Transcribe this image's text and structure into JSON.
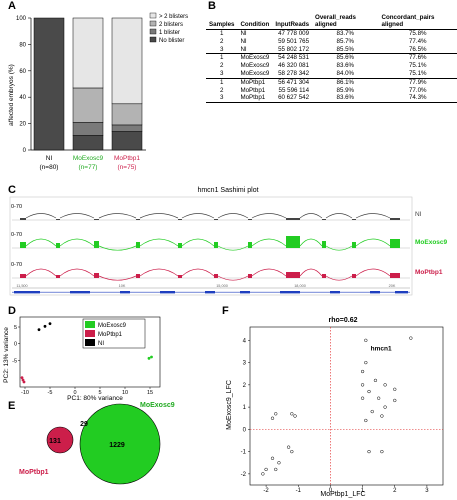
{
  "panels": {
    "a": "A",
    "b": "B",
    "c": "C",
    "d": "D",
    "e": "E",
    "f": "F"
  },
  "panel_a": {
    "ylabel": "affected embryos (%)",
    "yticks": [
      "100",
      "80",
      "60",
      "40",
      "20",
      "0"
    ],
    "legend": [
      "> 2 blisters",
      "2 blisters",
      "1 blister",
      "No blister"
    ],
    "legend_colors": [
      "#e6e6e6",
      "#b3b3b3",
      "#7a7a7a",
      "#4a4a4a"
    ],
    "bars": [
      {
        "name": "NI",
        "n": "(n=80)",
        "color": "#000000",
        "segments": [
          0,
          0,
          0,
          100
        ]
      },
      {
        "name": "MoExosc9",
        "n": "(n=77)",
        "color": "#22aa22",
        "segments": [
          53,
          26,
          10,
          11
        ]
      },
      {
        "name": "MoPtbp1",
        "n": "(n=75)",
        "color": "#cc1e4a",
        "segments": [
          65,
          16,
          5,
          14
        ]
      }
    ]
  },
  "panel_b": {
    "headers": [
      "Samples",
      "Condition",
      "InputReads",
      "Overall_reads aligned",
      "Concordant_pairs aligned"
    ],
    "rows": [
      [
        "1",
        "NI",
        "47 778 009",
        "83.7%",
        "75.8%"
      ],
      [
        "2",
        "NI",
        "59 501 765",
        "85.7%",
        "77.4%"
      ],
      [
        "3",
        "NI",
        "55 802 172",
        "85.5%",
        "76.5%"
      ],
      [
        "1",
        "MoExosc9",
        "54 248 531",
        "85.6%",
        "77.6%"
      ],
      [
        "2",
        "MoExosc9",
        "46 320 081",
        "83.6%",
        "75.1%"
      ],
      [
        "3",
        "MoExosc9",
        "58 278 342",
        "84.0%",
        "75.1%"
      ],
      [
        "1",
        "MoPtbp1",
        "56 471 304",
        "86.1%",
        "77.9%"
      ],
      [
        "2",
        "MoPtbp1",
        "55 596 114",
        "85.9%",
        "77.0%"
      ],
      [
        "3",
        "MoPtbp1",
        "60 627 542",
        "83.6%",
        "74.3%"
      ]
    ]
  },
  "panel_c": {
    "title": "hmcn1 Sashimi plot",
    "tracks": [
      {
        "range": "0-70",
        "label": "NI",
        "color": "#444444"
      },
      {
        "range": "0-70",
        "label": "MoExosc9",
        "color": "#22cc22"
      },
      {
        "range": "0-70",
        "label": "MoPtbp1",
        "color": "#cc1e4a"
      }
    ],
    "axis_ticks": [
      "11,500",
      "10K",
      "15,000",
      "18,000",
      "20K"
    ]
  },
  "panel_d": {
    "xlabel": "PC1: 80% variance",
    "ylabel": "PC2: 13% variance",
    "xticks": [
      "-10",
      "-5",
      "0",
      "5",
      "10",
      "15"
    ],
    "yticks": [
      "-5",
      "0",
      "5"
    ],
    "legend": [
      {
        "label": "MoExosc9",
        "color": "#22cc22"
      },
      {
        "label": "MoPtbp1",
        "color": "#cc1e4a"
      },
      {
        "label": "NI",
        "color": "#000000"
      }
    ],
    "points": [
      {
        "group": "NI",
        "x": -7.2,
        "y": 4.2
      },
      {
        "group": "NI",
        "x": -6.0,
        "y": 5.2
      },
      {
        "group": "NI",
        "x": -5.0,
        "y": 6.0
      },
      {
        "group": "MoExosc9",
        "x": 14.8,
        "y": -4.4
      },
      {
        "group": "MoExosc9",
        "x": 15.3,
        "y": -4.0
      },
      {
        "group": "MoPtbp1",
        "x": -10.6,
        "y": -10.2
      },
      {
        "group": "MoPtbp1",
        "x": -10.4,
        "y": -10.9
      },
      {
        "group": "MoPtbp1",
        "x": -10.2,
        "y": -11.5
      }
    ]
  },
  "panel_e": {
    "ptbp1_only": "131",
    "overlap": "29",
    "exosc9_only": "1229",
    "label_ptbp1": "MoPtbp1",
    "label_exosc9": "MoExosc9"
  },
  "panel_f": {
    "title": "rho=0.62",
    "xlabel": "MoPtbp1_LFC",
    "ylabel": "MoExosc9_LFC",
    "annotation": "hmcn1",
    "xticks": [
      "-2",
      "-1",
      "0",
      "1",
      "2",
      "3"
    ],
    "yticks": [
      "-2",
      "-1",
      "0",
      "1",
      "2",
      "3",
      "4"
    ],
    "points": [
      [
        2.5,
        4.1
      ],
      [
        1.1,
        4.0
      ],
      [
        1.1,
        3.0
      ],
      [
        1.0,
        2.6
      ],
      [
        1.4,
        2.2
      ],
      [
        1.0,
        2.0
      ],
      [
        1.7,
        2.0
      ],
      [
        2.0,
        1.8
      ],
      [
        1.2,
        1.7
      ],
      [
        1.5,
        1.4
      ],
      [
        1.0,
        1.4
      ],
      [
        2.0,
        1.3
      ],
      [
        1.7,
        1.0
      ],
      [
        1.3,
        0.8
      ],
      [
        1.6,
        0.6
      ],
      [
        1.1,
        0.4
      ],
      [
        1.2,
        -1.0
      ],
      [
        1.6,
        -1.0
      ],
      [
        -1.7,
        0.7
      ],
      [
        -1.8,
        0.5
      ],
      [
        -1.2,
        0.7
      ],
      [
        -1.1,
        0.6
      ],
      [
        -1.3,
        -0.8
      ],
      [
        -1.2,
        -1.0
      ],
      [
        -1.8,
        -1.3
      ],
      [
        -1.6,
        -1.5
      ],
      [
        -2.0,
        -1.8
      ],
      [
        -1.7,
        -1.8
      ],
      [
        -2.1,
        -2.0
      ]
    ]
  }
}
